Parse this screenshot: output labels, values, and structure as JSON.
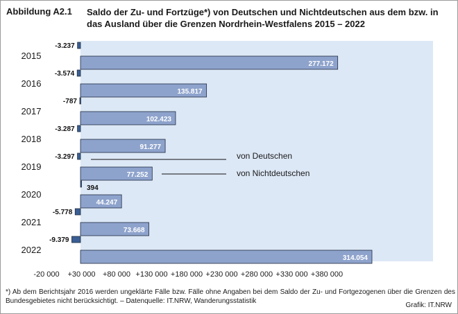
{
  "title": {
    "label": "Abbildung A2.1",
    "text": "Saldo der Zu- und Fortzüge*) von Deutschen und Nichtdeutschen aus dem bzw. in das Ausland über die Grenzen Nordrhein-Westfalens 2015 – 2022"
  },
  "footnote": "*) Ab dem Berichtsjahr 2016 werden ungeklärte Fälle bzw. Fälle ohne Angaben bei dem Saldo der Zu- und Fortgezogenen über die Grenzen des Bundesgebietes nicht berücksichtigt. – Datenquelle: IT.NRW, Wanderungsstatistik",
  "credit": "Grafik: IT.NRW",
  "colors": {
    "plot_bg": "#dde8f6",
    "german": "#3b5f94",
    "nongerman": "#8ea3cc",
    "border": "#1f2a40"
  },
  "chart_data": {
    "type": "bar",
    "orientation": "horizontal",
    "categories": [
      "2015",
      "2016",
      "2017",
      "2018",
      "2019",
      "2020",
      "2021",
      "2022"
    ],
    "series": [
      {
        "name": "von Deutschen",
        "values": [
          -3237,
          -3574,
          -787,
          -3287,
          -3297,
          394,
          -5778,
          -9379
        ],
        "labels": [
          "-3.237",
          "-3.574",
          "-787",
          "-3.287",
          "-3.297",
          "394",
          "-5.778",
          "-9.379"
        ]
      },
      {
        "name": "von Nichtdeutschen",
        "values": [
          277172,
          135817,
          102423,
          91277,
          77252,
          44247,
          73668,
          314054
        ],
        "labels": [
          "277.172",
          "135.817",
          "102.423",
          "91.277",
          "77.252",
          "44.247",
          "73.668",
          "314.054"
        ]
      }
    ],
    "xlim": [
      -20000,
      380000
    ],
    "xticks": [
      -20000,
      30000,
      80000,
      130000,
      180000,
      230000,
      280000,
      330000,
      380000
    ],
    "xtick_labels": [
      "-20 000",
      "+30 000",
      "+80 000",
      "+130 000",
      "+180 000",
      "+230 000",
      "+280 000",
      "+330 000",
      "+380 000"
    ],
    "legend_placement": "inline, pointing to 2019 bars"
  }
}
